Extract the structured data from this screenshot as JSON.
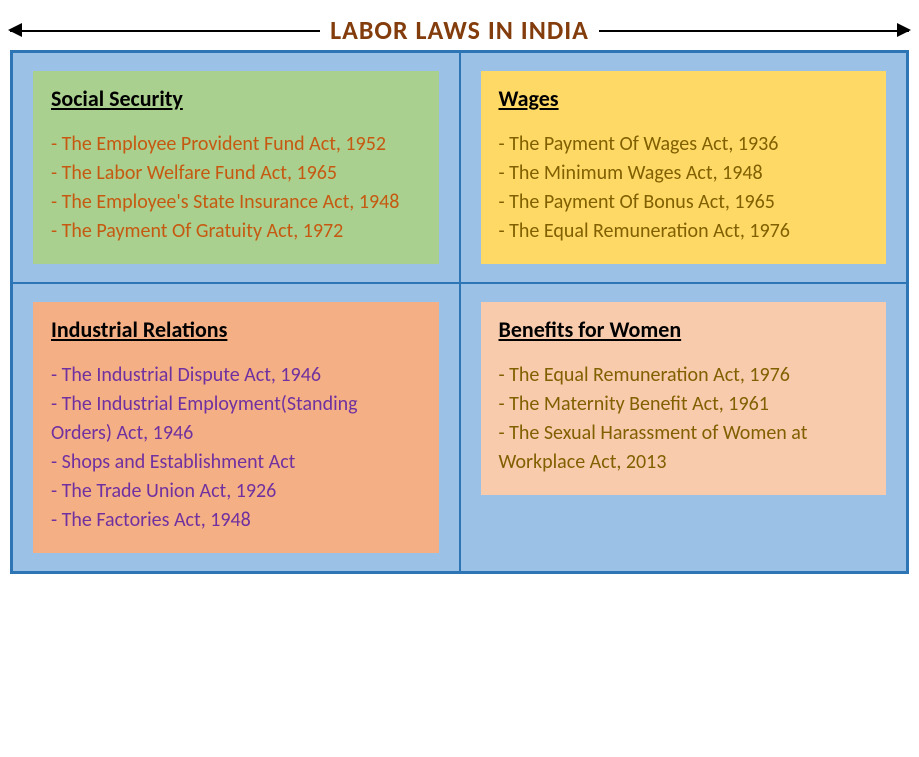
{
  "title": "LABOR LAWS IN INDIA",
  "colors": {
    "title_color": "#833c0c",
    "cell_bg": "#9bc2e6",
    "cell_border": "#2e75b6",
    "arrow_color": "#000000"
  },
  "cards": [
    {
      "title": "Social Security",
      "bg": "#a9d08e",
      "item_color": "#c65911",
      "items": [
        "- The Employee Provident Fund Act, 1952",
        "- The Labor Welfare Fund Act, 1965",
        "- The Employee's State Insurance Act, 1948",
        "- The Payment Of Gratuity Act, 1972"
      ]
    },
    {
      "title": "Wages",
      "bg": "#ffd966",
      "item_color": "#806000",
      "items": [
        "- The Payment Of Wages Act, 1936",
        "- The Minimum Wages Act, 1948",
        "- The Payment Of Bonus Act, 1965",
        "- The Equal Remuneration Act, 1976"
      ]
    },
    {
      "title": "Industrial Relations",
      "bg": "#f4b084",
      "item_color": "#7030a0",
      "items": [
        "- The Industrial Dispute Act, 1946",
        "- The Industrial Employment(Standing Orders) Act, 1946",
        "- Shops and Establishment Act",
        "- The Trade Union Act, 1926",
        "- The Factories Act, 1948"
      ]
    },
    {
      "title": "Benefits for Women",
      "bg": "#f8cbad",
      "item_color": "#806000",
      "items": [
        "- The Equal Remuneration Act, 1976",
        "- The Maternity Benefit Act, 1961",
        "- The Sexual Harassment of Women at Workplace Act, 2013"
      ]
    }
  ]
}
